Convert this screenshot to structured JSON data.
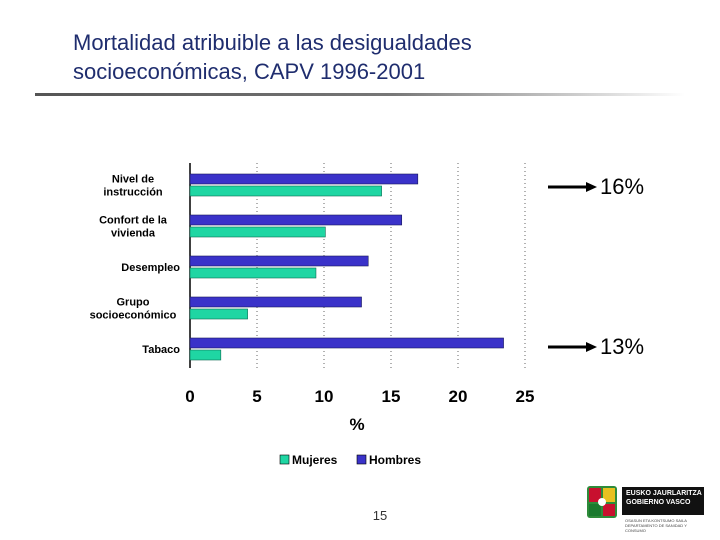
{
  "slide": {
    "title_line1": "Mortalidad atribuible a las desigualdades",
    "title_line2": "socioeconómicas, CAPV 1996-2001",
    "page_number": "15",
    "annotation_top": "16%",
    "annotation_bottom": "13%"
  },
  "logo": {
    "line1": "EUSKO JAURLARITZA",
    "line2": "GOBIERNO VASCO",
    "dept1": "OSASUN ETA KONTSUMO SAILA",
    "dept2": "DEPARTAMENTO DE SANIDAD Y CONSUMO"
  },
  "colors": {
    "mujeres": "#1fd6a3",
    "hombres": "#3a32c9",
    "arrow": "#000000",
    "title": "#1f2d6e"
  },
  "chart_data": {
    "type": "bar",
    "orientation": "horizontal",
    "categories": [
      "Nivel de instrucción",
      "Confort de la vivienda",
      "Desempleo",
      "Grupo socioeconómico",
      "Tabaco"
    ],
    "series": [
      {
        "name": "Hombres",
        "values": [
          17.0,
          15.8,
          13.3,
          12.8,
          23.4
        ]
      },
      {
        "name": "Mujeres",
        "values": [
          14.3,
          10.1,
          9.4,
          4.3,
          2.3
        ]
      }
    ],
    "xlim": [
      0,
      25
    ],
    "xticks": [
      "0",
      "5",
      "10",
      "15",
      "20",
      "25"
    ],
    "xlabel": "%",
    "legend": [
      "Mujeres",
      "Hombres"
    ],
    "legend_position": "bottom",
    "grid": "vertical dotted"
  }
}
